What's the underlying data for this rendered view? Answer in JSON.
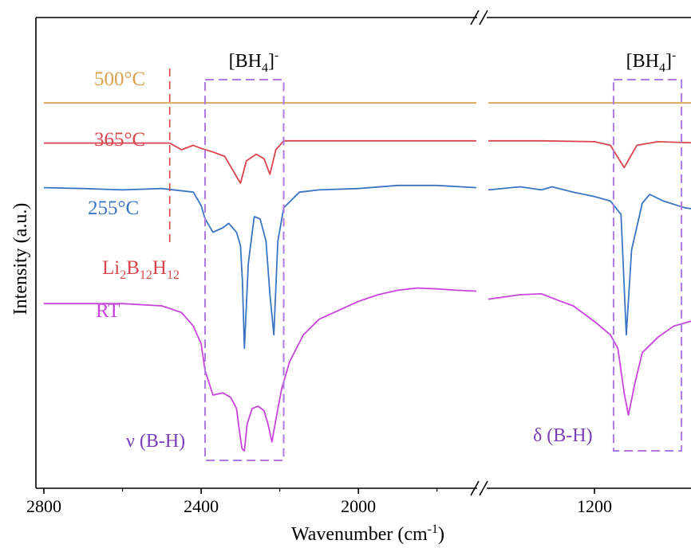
{
  "chart_data": {
    "type": "line",
    "xlabel": "Wavenumber",
    "xlabel_unit_prefix": "(cm",
    "xlabel_unit_exp": "-1",
    "xlabel_unit_suffix": ")",
    "ylabel": "Intensity (a.u.)",
    "x_axis_reversed": true,
    "x_axis_break": [
      1700,
      1300
    ],
    "xlim_left": [
      2800,
      1700
    ],
    "xlim_right": [
      1300,
      1100
    ],
    "x_ticks": [
      2800,
      2400,
      2000,
      1200
    ],
    "x_tick_labels": [
      "2800",
      "2400",
      "2000",
      "1200"
    ],
    "series": [
      {
        "name": "500°C",
        "color": "#d9a14e",
        "label_parts": [
          {
            "t": "500°C"
          }
        ],
        "points": [
          [
            2800,
            7.8
          ],
          [
            2400,
            7.8
          ],
          [
            2000,
            7.8
          ],
          [
            1700,
            7.8
          ],
          [
            1300,
            7.8
          ],
          [
            1200,
            7.8
          ],
          [
            1100,
            7.8
          ]
        ]
      },
      {
        "name": "365°C",
        "color": "#d9454d",
        "label_parts": [
          {
            "t": "365°C"
          }
        ],
        "points": [
          [
            2800,
            6.9
          ],
          [
            2600,
            6.9
          ],
          [
            2480,
            6.9
          ],
          [
            2450,
            6.75
          ],
          [
            2420,
            6.85
          ],
          [
            2400,
            6.78
          ],
          [
            2370,
            6.7
          ],
          [
            2340,
            6.6
          ],
          [
            2320,
            6.3
          ],
          [
            2300,
            6.0
          ],
          [
            2285,
            6.5
          ],
          [
            2260,
            6.65
          ],
          [
            2240,
            6.55
          ],
          [
            2225,
            6.2
          ],
          [
            2210,
            6.75
          ],
          [
            2190,
            6.95
          ],
          [
            2150,
            6.95
          ],
          [
            2000,
            6.95
          ],
          [
            1700,
            6.95
          ],
          [
            1300,
            6.95
          ],
          [
            1250,
            6.95
          ],
          [
            1200,
            6.93
          ],
          [
            1185,
            6.85
          ],
          [
            1172,
            6.35
          ],
          [
            1160,
            6.85
          ],
          [
            1140,
            6.93
          ],
          [
            1100,
            6.9
          ]
        ]
      },
      {
        "name": "255°C",
        "color": "#3a75c4",
        "label_parts": [
          {
            "t": "255°C"
          }
        ],
        "points": [
          [
            2800,
            5.9
          ],
          [
            2700,
            5.88
          ],
          [
            2600,
            5.85
          ],
          [
            2500,
            5.88
          ],
          [
            2420,
            5.8
          ],
          [
            2400,
            5.5
          ],
          [
            2390,
            5.2
          ],
          [
            2370,
            4.9
          ],
          [
            2345,
            5.0
          ],
          [
            2330,
            5.1
          ],
          [
            2310,
            4.9
          ],
          [
            2300,
            4.6
          ],
          [
            2295,
            3.8
          ],
          [
            2290,
            2.3
          ],
          [
            2280,
            4.2
          ],
          [
            2265,
            5.25
          ],
          [
            2250,
            5.2
          ],
          [
            2235,
            4.7
          ],
          [
            2225,
            3.5
          ],
          [
            2215,
            2.6
          ],
          [
            2205,
            4.7
          ],
          [
            2190,
            5.45
          ],
          [
            2150,
            5.8
          ],
          [
            2100,
            5.85
          ],
          [
            2000,
            5.88
          ],
          [
            1900,
            5.95
          ],
          [
            1800,
            5.95
          ],
          [
            1700,
            5.9
          ],
          [
            1300,
            5.85
          ],
          [
            1270,
            5.92
          ],
          [
            1250,
            5.85
          ],
          [
            1240,
            5.92
          ],
          [
            1220,
            5.8
          ],
          [
            1200,
            5.7
          ],
          [
            1185,
            5.6
          ],
          [
            1175,
            5.3
          ],
          [
            1170,
            2.6
          ],
          [
            1165,
            4.5
          ],
          [
            1155,
            5.55
          ],
          [
            1148,
            5.75
          ],
          [
            1135,
            5.6
          ],
          [
            1115,
            5.45
          ],
          [
            1100,
            5.4
          ]
        ]
      },
      {
        "name": "RT",
        "color": "#c845dc",
        "label_parts": [
          {
            "t": "RT"
          }
        ],
        "points": [
          [
            2800,
            3.3
          ],
          [
            2600,
            3.3
          ],
          [
            2500,
            3.25
          ],
          [
            2450,
            3.1
          ],
          [
            2420,
            2.8
          ],
          [
            2400,
            2.4
          ],
          [
            2390,
            1.8
          ],
          [
            2370,
            1.25
          ],
          [
            2345,
            1.3
          ],
          [
            2325,
            1.2
          ],
          [
            2310,
            0.95
          ],
          [
            2302,
            0.4
          ],
          [
            2296,
            0.05
          ],
          [
            2290,
            0.0
          ],
          [
            2283,
            0.6
          ],
          [
            2270,
            0.95
          ],
          [
            2255,
            1.0
          ],
          [
            2240,
            0.9
          ],
          [
            2230,
            0.6
          ],
          [
            2220,
            0.2
          ],
          [
            2210,
            0.7
          ],
          [
            2195,
            1.4
          ],
          [
            2175,
            2.0
          ],
          [
            2140,
            2.6
          ],
          [
            2100,
            2.95
          ],
          [
            2000,
            3.35
          ],
          [
            1950,
            3.5
          ],
          [
            1900,
            3.6
          ],
          [
            1850,
            3.65
          ],
          [
            1800,
            3.63
          ],
          [
            1750,
            3.6
          ],
          [
            1700,
            3.58
          ],
          [
            1300,
            3.4
          ],
          [
            1270,
            3.5
          ],
          [
            1250,
            3.52
          ],
          [
            1235,
            3.38
          ],
          [
            1220,
            3.25
          ],
          [
            1200,
            2.9
          ],
          [
            1185,
            2.6
          ],
          [
            1178,
            2.3
          ],
          [
            1172,
            1.3
          ],
          [
            1168,
            0.8
          ],
          [
            1162,
            1.5
          ],
          [
            1155,
            2.2
          ],
          [
            1140,
            2.55
          ],
          [
            1125,
            2.8
          ],
          [
            1110,
            2.9
          ],
          [
            1100,
            2.95
          ]
        ]
      }
    ],
    "annotations": {
      "li2b12h12": {
        "parts": [
          {
            "t": "Li"
          },
          {
            "s": "2"
          },
          {
            "t": "B"
          },
          {
            "s": "12"
          },
          {
            "t": "H"
          },
          {
            "s": "12"
          }
        ],
        "color": "#d9454d",
        "marker_x": 2480
      },
      "bh4_left": {
        "base": "[BH",
        "sub": "4",
        "close": "]",
        "sup": "-",
        "color": "#000000"
      },
      "bh4_right": {
        "base": "[BH",
        "sub": "4",
        "close": "]",
        "sup": "-",
        "color": "#000000"
      },
      "stretch": {
        "text": "ν (B-H)",
        "color": "#7a3fb8"
      },
      "bend": {
        "text": "δ (B-H)",
        "color": "#7a3fb8"
      },
      "box_color": "#b07ae0",
      "box_left_x": [
        2390,
        2190
      ],
      "box_right_x": [
        1182,
        1118
      ]
    }
  }
}
